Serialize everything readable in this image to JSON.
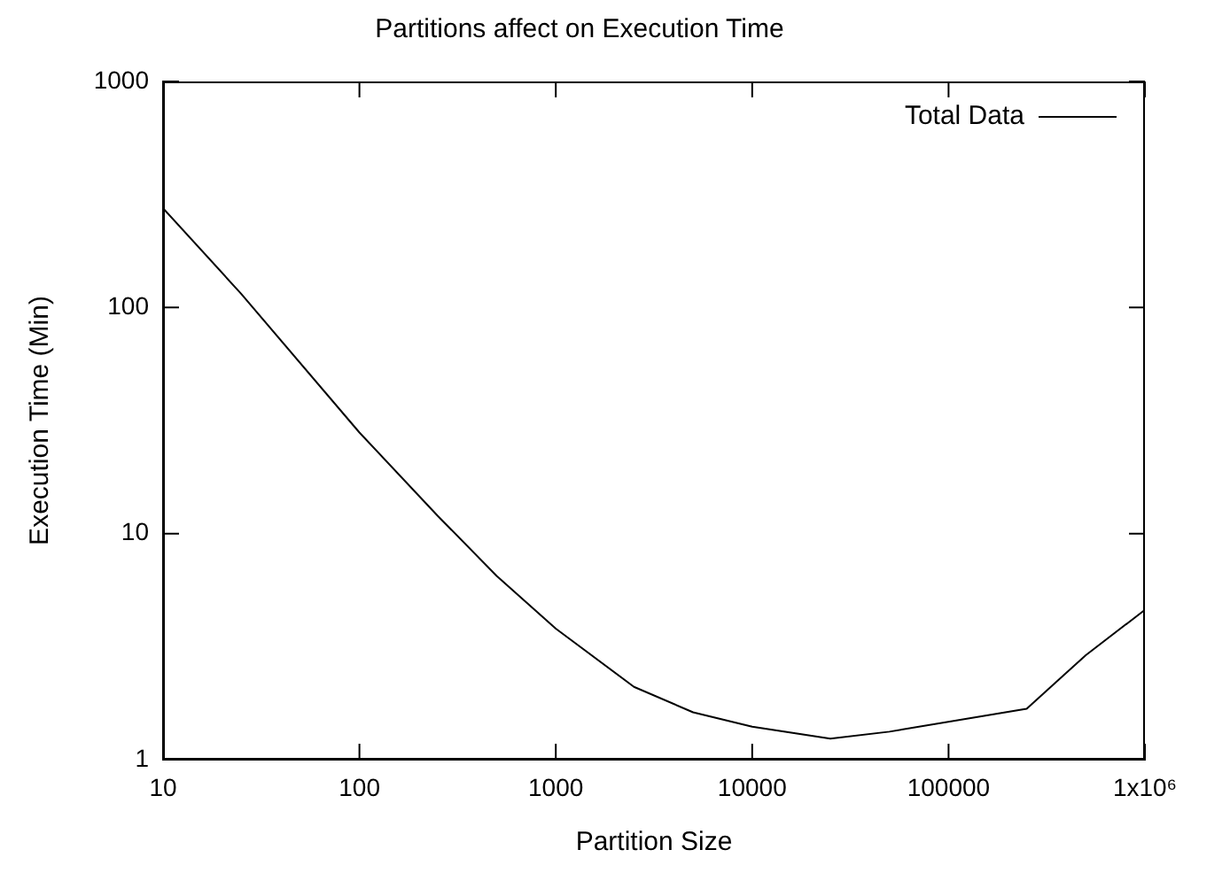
{
  "chart_data": {
    "type": "line",
    "title": "Partitions affect on Execution Time",
    "xlabel": "Partition Size",
    "ylabel": "Execution Time (Min)",
    "log": "xy",
    "x": [
      10,
      25,
      100,
      250,
      500,
      1000,
      2500,
      5000,
      10000,
      25000,
      50000,
      250000,
      500000,
      1000000
    ],
    "series": [
      {
        "name": "Total Data",
        "color": "#000000",
        "values": [
          275,
          115,
          28,
          12,
          6.5,
          3.8,
          2.1,
          1.62,
          1.4,
          1.24,
          1.33,
          1.68,
          2.9,
          4.6
        ]
      }
    ],
    "xlim": [
      10,
      1000000
    ],
    "xticks": [
      10,
      100,
      1000,
      10000,
      100000,
      {
        "value": 1000000,
        "label": "1x10⁶"
      }
    ],
    "ylim": [
      1,
      1000
    ],
    "yticks": [
      1,
      10,
      100,
      1000
    ],
    "grid": false,
    "legend": "top right",
    "marker": "none",
    "line_style": "solid"
  }
}
